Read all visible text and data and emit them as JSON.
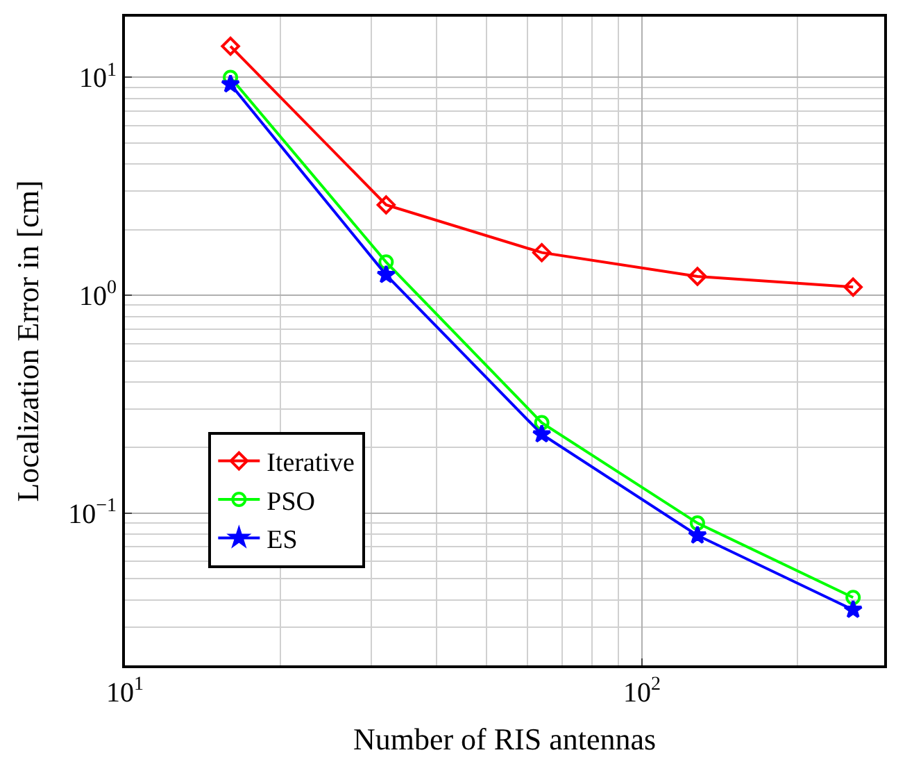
{
  "chart_data": {
    "type": "line",
    "xlabel": "Number of RIS antennas",
    "ylabel": "Localization Error in [cm]",
    "x": [
      16,
      32,
      64,
      128,
      256
    ],
    "series": [
      {
        "name": "Iterative",
        "color": "#ff0000",
        "marker": "diamond",
        "values": [
          13.9,
          2.6,
          1.57,
          1.22,
          1.09
        ]
      },
      {
        "name": "PSO",
        "color": "#00ff00",
        "marker": "circle",
        "values": [
          10,
          1.42,
          0.26,
          0.09,
          0.041
        ]
      },
      {
        "name": "ES",
        "color": "#0000ff",
        "marker": "star",
        "values": [
          9.3,
          1.24,
          0.23,
          0.079,
          0.036
        ]
      }
    ],
    "log": "xy",
    "xlim": [
      10,
      294
    ],
    "ylim": [
      0.02,
      19
    ],
    "xticks": [
      {
        "value": 10,
        "label": "10$^{1}$"
      },
      {
        "value": 100,
        "label": "10$^{2}$"
      }
    ],
    "yticks": [
      {
        "value": 0.1,
        "label": "10$^{−1}$"
      },
      {
        "value": 1,
        "label": "10$^{0}$"
      },
      {
        "value": 10,
        "label": "10$^{1}$"
      }
    ],
    "grid": true,
    "legend": "bottom left",
    "line_style": "solid"
  }
}
